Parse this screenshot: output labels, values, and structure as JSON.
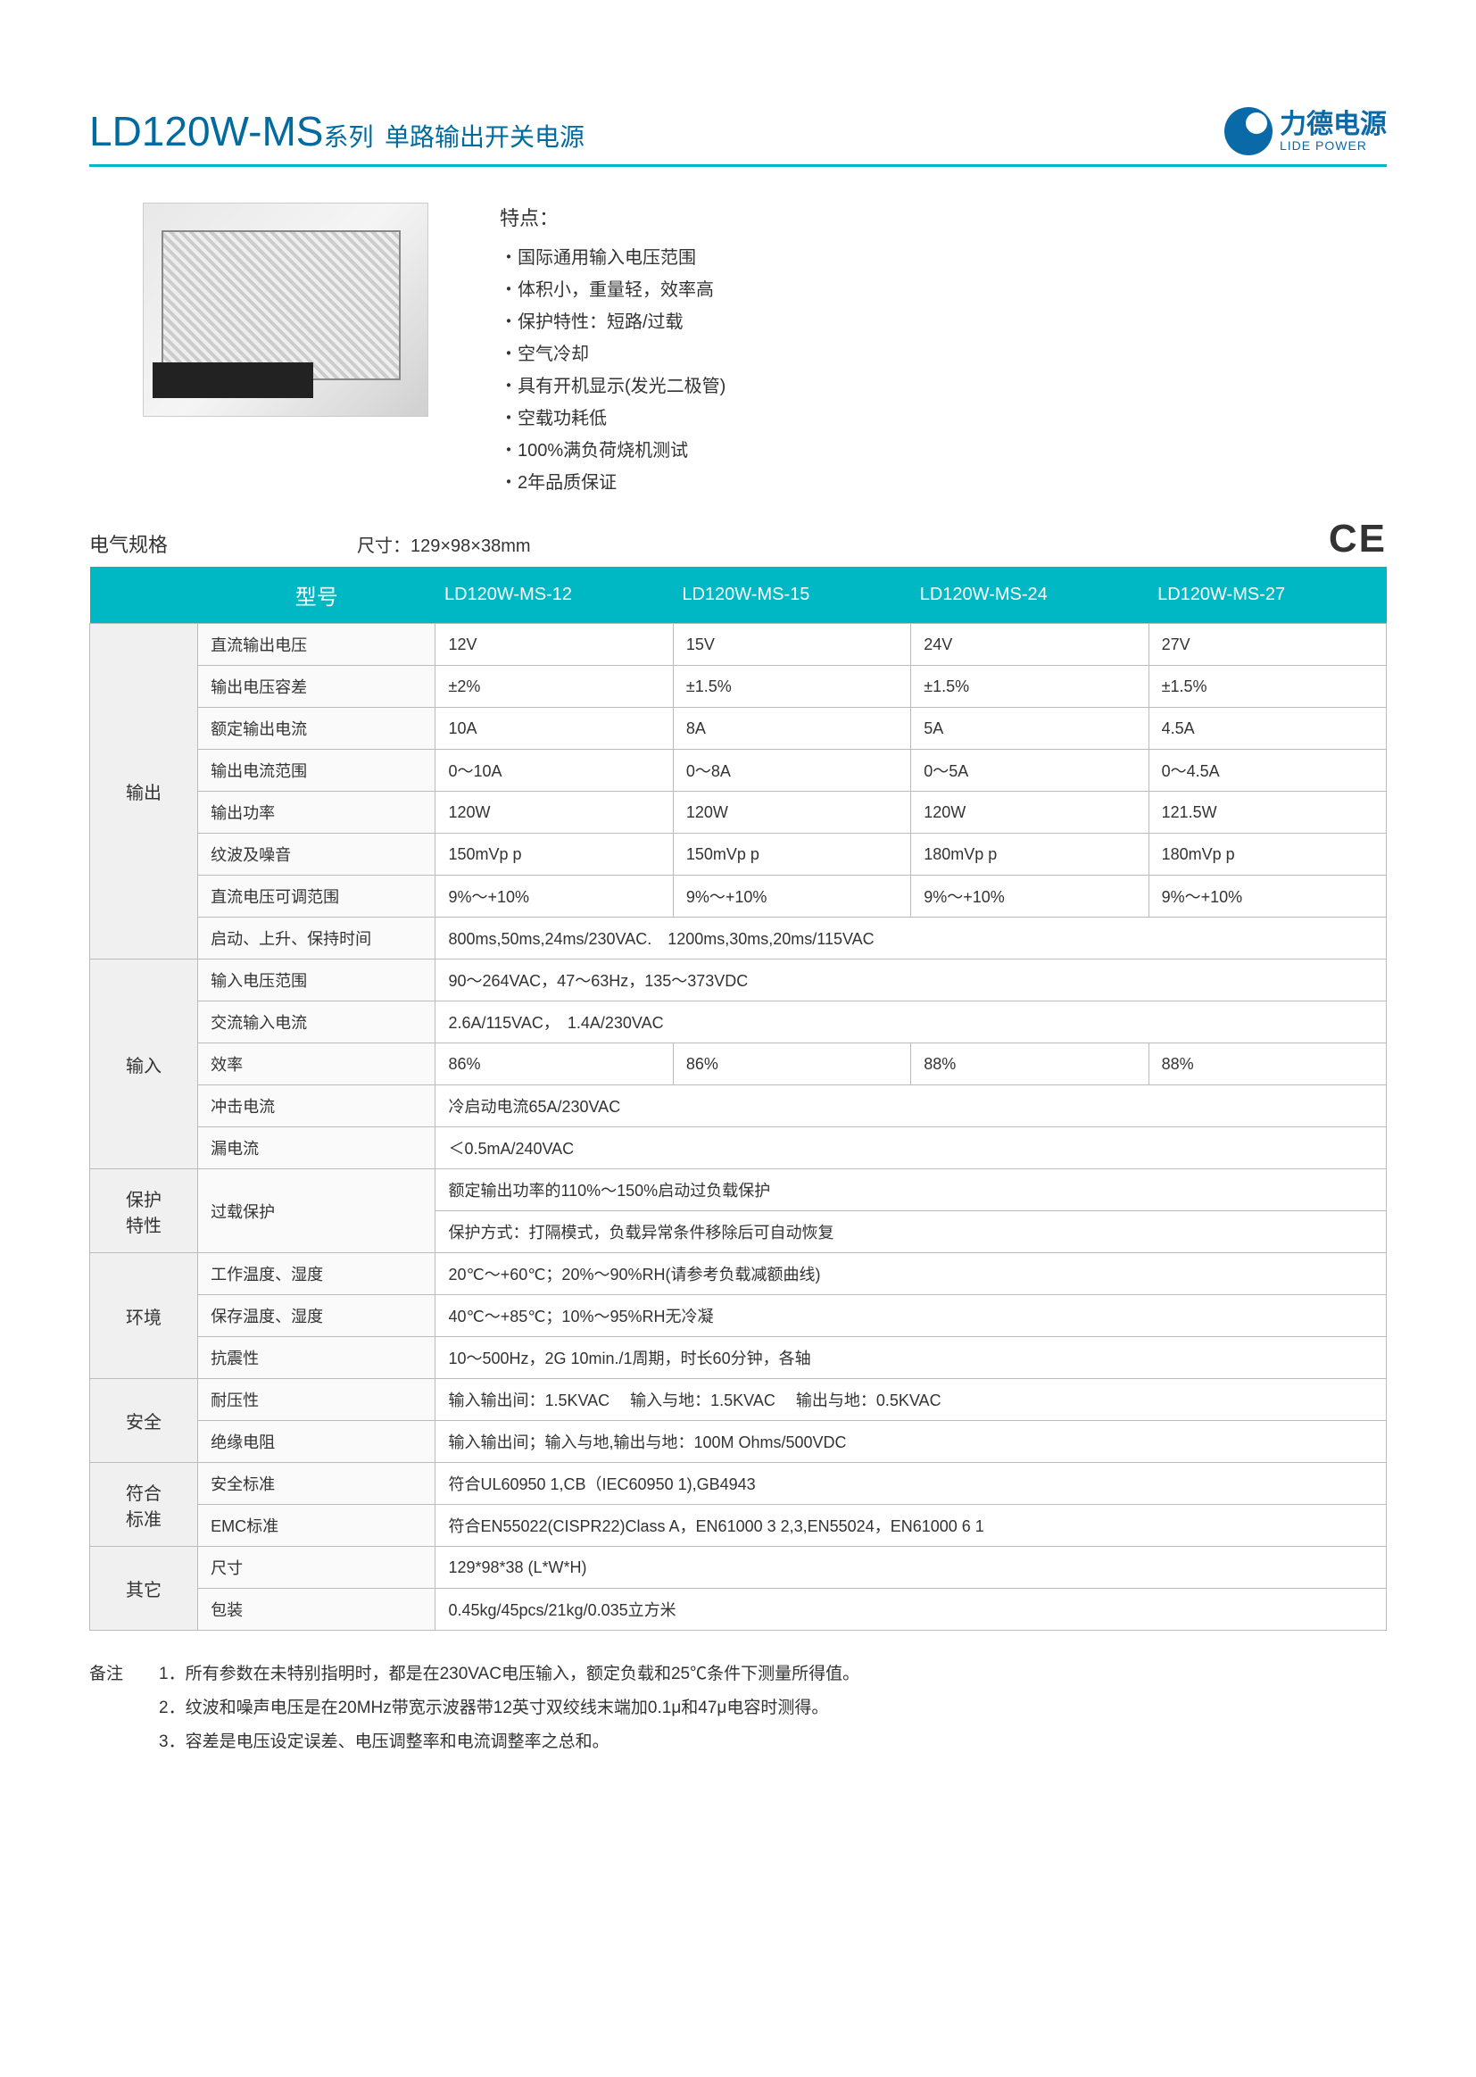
{
  "header": {
    "title_main": "LD120W-MS",
    "title_sub": "系列",
    "title_desc": "单路输出开关电源",
    "logo_cn": "力德电源",
    "logo_en": "LIDE POWER"
  },
  "features": {
    "title": "特点：",
    "items": [
      "国际通用输入电压范围",
      "体积小，重量轻，效率高",
      "保护特性：短路/过载",
      "空气冷却",
      "具有开机显示(发光二极管)",
      "空载功耗低",
      "100%满负荷烧机测试",
      "2年品质保证"
    ]
  },
  "spec_header": {
    "label": "电气规格",
    "dimensions": "尺寸：129×98×38mm",
    "ce": "CE"
  },
  "table": {
    "head_model": "型号",
    "models": [
      "LD120W-MS-12",
      "LD120W-MS-15",
      "LD120W-MS-24",
      "LD120W-MS-27"
    ],
    "groups": [
      {
        "name": "输出",
        "rows": [
          {
            "param": "直流输出电压",
            "vals": [
              "12V",
              "15V",
              "24V",
              "27V"
            ]
          },
          {
            "param": "输出电压容差",
            "vals": [
              "±2%",
              "±1.5%",
              "±1.5%",
              "±1.5%"
            ]
          },
          {
            "param": "额定输出电流",
            "vals": [
              "10A",
              "8A",
              "5A",
              "4.5A"
            ]
          },
          {
            "param": "输出电流范围",
            "vals": [
              "0～10A",
              "0～8A",
              "0～5A",
              "0～4.5A"
            ]
          },
          {
            "param": "输出功率",
            "vals": [
              "120W",
              "120W",
              "120W",
              "121.5W"
            ]
          },
          {
            "param": "纹波及噪音",
            "vals": [
              "150mVp p",
              "150mVp p",
              "180mVp p",
              "180mVp p"
            ]
          },
          {
            "param": "直流电压可调范围",
            "vals": [
              "9%～+10%",
              "9%～+10%",
              "9%～+10%",
              "9%～+10%"
            ]
          },
          {
            "param": "启动、上升、保持时间",
            "span": "800ms,50ms,24ms/230VAC.　1200ms,30ms,20ms/115VAC"
          }
        ]
      },
      {
        "name": "输入",
        "rows": [
          {
            "param": "输入电压范围",
            "span": "90～264VAC，47～63Hz，135～373VDC"
          },
          {
            "param": "交流输入电流",
            "span": "2.6A/115VAC，　1.4A/230VAC"
          },
          {
            "param": "效率",
            "vals": [
              "86%",
              "86%",
              "88%",
              "88%"
            ]
          },
          {
            "param": "冲击电流",
            "span": "冷启动电流65A/230VAC"
          },
          {
            "param": "漏电流",
            "span": "＜0.5mA/240VAC"
          }
        ]
      },
      {
        "name": "保护\n特性",
        "rows": [
          {
            "param": "过载保护",
            "span2": [
              "额定输出功率的110%～150%启动过负载保护",
              "保护方式：打隔模式，负载异常条件移除后可自动恢复"
            ]
          }
        ]
      },
      {
        "name": "环境",
        "rows": [
          {
            "param": "工作温度、湿度",
            "span": "20℃～+60℃；20%～90%RH(请参考负载减额曲线)"
          },
          {
            "param": "保存温度、湿度",
            "span": "40℃～+85℃；10%～95%RH无冷凝"
          },
          {
            "param": "抗震性",
            "span": "10～500Hz，2G 10min./1周期，时长60分钟，各轴"
          }
        ]
      },
      {
        "name": "安全",
        "rows": [
          {
            "param": "耐压性",
            "span": "输入输出间：1.5KVAC　 输入与地：1.5KVAC　 输出与地：0.5KVAC"
          },
          {
            "param": "绝缘电阻",
            "span": "输入输出间；输入与地,输出与地：100M Ohms/500VDC"
          }
        ]
      },
      {
        "name": "符合\n标准",
        "rows": [
          {
            "param": "安全标准",
            "span": "符合UL60950 1,CB（IEC60950 1),GB4943"
          },
          {
            "param": "EMC标准",
            "span": "符合EN55022(CISPR22)Class A，EN61000 3 2,3,EN55024，EN61000 6 1"
          }
        ]
      },
      {
        "name": "其它",
        "rows": [
          {
            "param": "尺寸",
            "span": "129*98*38 (L*W*H)"
          },
          {
            "param": "包装",
            "span": "0.45kg/45pcs/21kg/0.035立方米"
          }
        ]
      }
    ]
  },
  "notes": {
    "label": "备注",
    "lines": [
      "1．所有参数在未特别指明时，都是在230VAC电压输入，额定负载和25℃条件下测量所得值。",
      "2．纹波和噪声电压是在20MHz带宽示波器带12英寸双绞线末端加0.1μ和47μ电容时测得。",
      "3．容差是电压设定误差、电压调整率和电流调整率之总和。"
    ]
  },
  "colors": {
    "accent": "#00b8c4",
    "brand_blue": "#006b9e",
    "logo_blue": "#0a6aa8",
    "border": "#bbbbbb",
    "group_bg": "#f0f0f0",
    "param_bg": "#fafafa"
  }
}
